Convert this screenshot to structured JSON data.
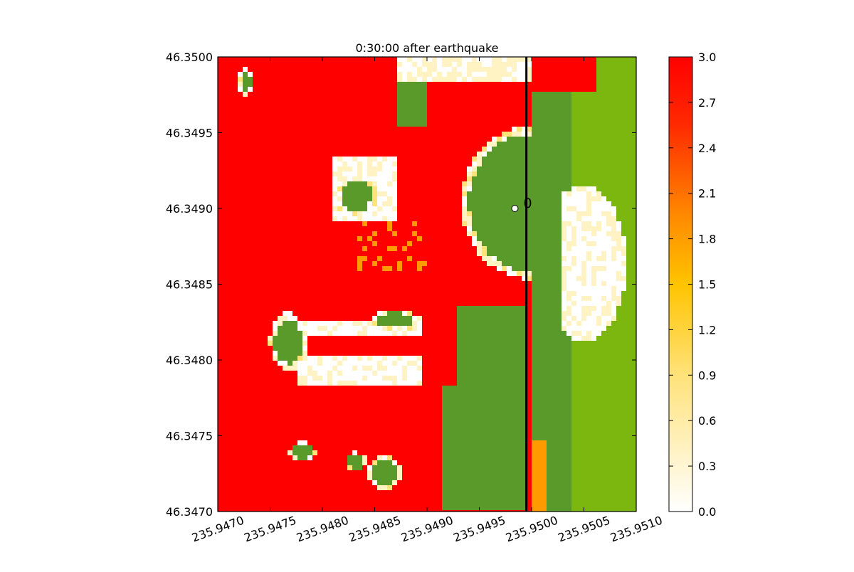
{
  "chart_data": {
    "type": "heatmap",
    "title": "0:30:00 after earthquake",
    "xlabel": "",
    "ylabel": "",
    "xlim": [
      235.947,
      235.951
    ],
    "ylim": [
      46.347,
      46.35
    ],
    "x_tick_labels": [
      "235.9470",
      "235.9475",
      "235.9480",
      "235.9485",
      "235.9490",
      "235.9495",
      "235.9500",
      "235.9505",
      "235.9510"
    ],
    "x_ticks": [
      235.947,
      235.9475,
      235.948,
      235.9485,
      235.949,
      235.9495,
      235.95,
      235.9505,
      235.951
    ],
    "y_tick_labels": [
      "46.3470",
      "46.3475",
      "46.3480",
      "46.3485",
      "46.3490",
      "46.3495",
      "46.3500"
    ],
    "y_ticks": [
      46.347,
      46.3475,
      46.348,
      46.3485,
      46.349,
      46.3495,
      46.35
    ],
    "colorbar": {
      "range": [
        0.0,
        3.0
      ],
      "tick_labels": [
        "0.0",
        "0.3",
        "0.6",
        "0.9",
        "1.2",
        "1.5",
        "1.8",
        "2.1",
        "2.4",
        "2.7",
        "3.0"
      ],
      "ticks": [
        0.0,
        0.3,
        0.6,
        0.9,
        1.2,
        1.5,
        1.8,
        2.1,
        2.4,
        2.7,
        3.0
      ],
      "colors": [
        "#ffffff",
        "#ffe27a",
        "#ffc400",
        "#ff8a00",
        "#ff0000"
      ]
    },
    "dry_land_colors": [
      "#5a9a2a",
      "#7cb70f"
    ],
    "vertical_line_x": 235.94995,
    "gauge": {
      "label": "0",
      "x": 235.94984,
      "y": 46.349
    }
  }
}
